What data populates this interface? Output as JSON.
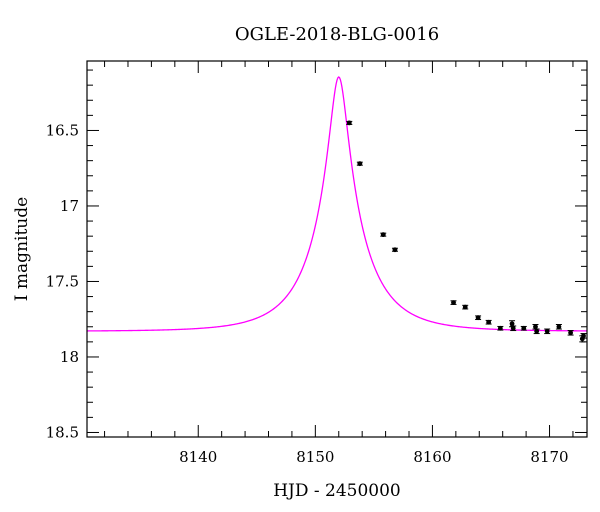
{
  "chart_data": {
    "type": "scatter",
    "title": "OGLE-2018-BLG-0016",
    "xlabel": "HJD - 2450000",
    "ylabel": "I magnitude",
    "xlim": [
      8130.5,
      8173.2
    ],
    "ylim": [
      18.53,
      16.04
    ],
    "y_inverted": true,
    "x_major_ticks": [
      8140,
      8150,
      8160,
      8170
    ],
    "x_tick_labels": [
      "8140",
      "8150",
      "8160",
      "8170"
    ],
    "y_major_ticks": [
      16.5,
      17,
      17.5,
      18,
      18.5
    ],
    "y_tick_labels": [
      "16.5",
      "17",
      "17.5",
      "18",
      "18.5"
    ],
    "grid": false,
    "model_color": "#ff00ff",
    "points_color": "#000000",
    "model": {
      "t0": 8152.0,
      "tE": 4.5,
      "u0": 0.16,
      "baseline": 17.83,
      "blend_fraction": 0.7
    },
    "series": [
      {
        "type": "scatter",
        "points": [
          {
            "x": 8152.9,
            "y": 16.45,
            "err": 0.01
          },
          {
            "x": 8153.8,
            "y": 16.72,
            "err": 0.01
          },
          {
            "x": 8155.8,
            "y": 17.19,
            "err": 0.01
          },
          {
            "x": 8156.8,
            "y": 17.29,
            "err": 0.01
          },
          {
            "x": 8161.8,
            "y": 17.64,
            "err": 0.012
          },
          {
            "x": 8162.8,
            "y": 17.67,
            "err": 0.012
          },
          {
            "x": 8163.9,
            "y": 17.74,
            "err": 0.012
          },
          {
            "x": 8164.8,
            "y": 17.77,
            "err": 0.012
          },
          {
            "x": 8165.8,
            "y": 17.81,
            "err": 0.012
          },
          {
            "x": 8166.8,
            "y": 17.78,
            "err": 0.02
          },
          {
            "x": 8166.9,
            "y": 17.81,
            "err": 0.015
          },
          {
            "x": 8167.8,
            "y": 17.81,
            "err": 0.012
          },
          {
            "x": 8168.8,
            "y": 17.8,
            "err": 0.015
          },
          {
            "x": 8168.9,
            "y": 17.83,
            "err": 0.015
          },
          {
            "x": 8169.8,
            "y": 17.83,
            "err": 0.015
          },
          {
            "x": 8170.8,
            "y": 17.8,
            "err": 0.015
          },
          {
            "x": 8171.8,
            "y": 17.84,
            "err": 0.015
          },
          {
            "x": 8172.8,
            "y": 17.88,
            "err": 0.02
          },
          {
            "x": 8172.9,
            "y": 17.86,
            "err": 0.015
          }
        ]
      }
    ]
  }
}
